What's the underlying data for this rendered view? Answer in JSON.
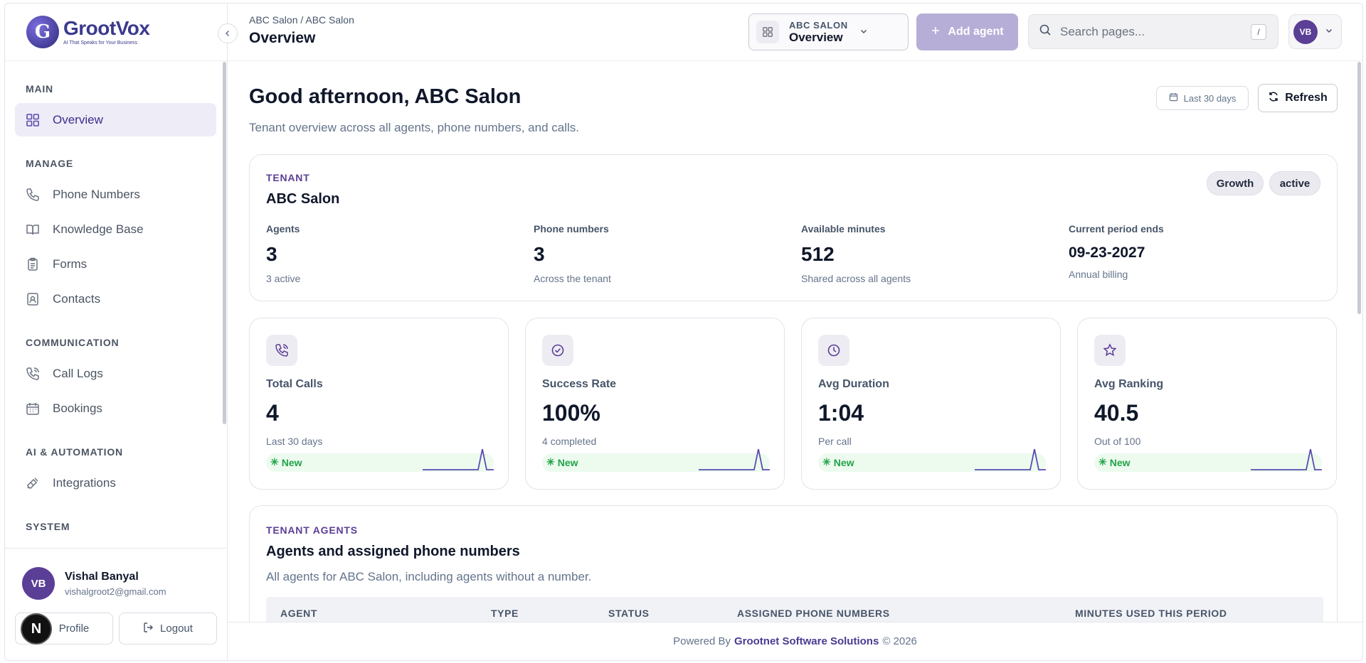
{
  "brand": {
    "logo_word": "GrootVox",
    "logo_letter": "G",
    "tagline": "AI That Speaks for Your Business"
  },
  "sidebar": {
    "sections": {
      "main": "MAIN",
      "manage": "MANAGE",
      "communication": "COMMUNICATION",
      "ai": "AI & AUTOMATION",
      "system": "SYSTEM"
    },
    "items": {
      "overview": "Overview",
      "phone_numbers": "Phone Numbers",
      "knowledge_base": "Knowledge Base",
      "forms": "Forms",
      "contacts": "Contacts",
      "call_logs": "Call Logs",
      "bookings": "Bookings",
      "integrations": "Integrations"
    },
    "user": {
      "initials": "VB",
      "name": "Vishal Banyal",
      "email": "vishalgroot2@gmail.com"
    },
    "profile_label": "Profile",
    "logout_label": "Logout",
    "dev_badge": "N"
  },
  "header": {
    "breadcrumb": "ABC Salon / ABC Salon",
    "title": "Overview",
    "tenant_select": {
      "top": "ABC SALON",
      "bottom": "Overview"
    },
    "add_agent_label": "Add agent",
    "search_placeholder": "Search pages...",
    "search_shortcut": "/",
    "avatar_initials": "VB"
  },
  "main": {
    "greeting": "Good afternoon, ABC Salon",
    "subtitle": "Tenant overview across all agents, phone numbers, and calls.",
    "range_label": "Last 30 days",
    "refresh_label": "Refresh",
    "tenant": {
      "eyebrow": "TENANT",
      "name": "ABC Salon",
      "plan": "Growth",
      "status": "active",
      "stats": [
        {
          "label": "Agents",
          "value": "3",
          "sub": "3 active"
        },
        {
          "label": "Phone numbers",
          "value": "3",
          "sub": "Across the tenant"
        },
        {
          "label": "Available minutes",
          "value": "512",
          "sub": "Shared across all agents"
        },
        {
          "label": "Current period ends",
          "value": "09-23-2027",
          "sub": "Annual billing"
        }
      ]
    },
    "metrics": [
      {
        "label": "Total Calls",
        "value": "4",
        "sub": "Last 30 days",
        "badge": "New",
        "icon": "phone-call-icon"
      },
      {
        "label": "Success Rate",
        "value": "100%",
        "sub": "4 completed",
        "badge": "New",
        "icon": "check-circle-icon"
      },
      {
        "label": "Avg Duration",
        "value": "1:04",
        "sub": "Per call",
        "badge": "New",
        "icon": "clock-icon"
      },
      {
        "label": "Avg Ranking",
        "value": "40.5",
        "sub": "Out of 100",
        "badge": "New",
        "icon": "star-icon"
      }
    ],
    "agents": {
      "eyebrow": "TENANT AGENTS",
      "title": "Agents and assigned phone numbers",
      "subtitle": "All agents for ABC Salon, including agents without a number.",
      "columns": [
        "AGENT",
        "TYPE",
        "STATUS",
        "ASSIGNED PHONE NUMBERS",
        "MINUTES USED THIS PERIOD"
      ]
    }
  },
  "footer": {
    "prefix": "Powered By",
    "company": "Grootnet Software Solutions",
    "suffix": "© 2026"
  },
  "colors": {
    "accent": "#5b3e96",
    "add_agent_bg": "#b7aed7",
    "trend_green": "#22a34a"
  }
}
